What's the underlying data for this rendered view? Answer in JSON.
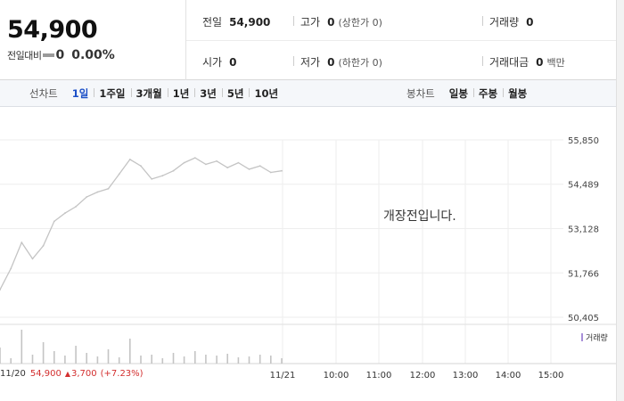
{
  "quote": {
    "price": "54,900",
    "change_label": "전일대비",
    "change_value": "0",
    "change_pct": "0.00%"
  },
  "stats": [
    {
      "label": "전일",
      "value": "54,900",
      "sub": ""
    },
    {
      "label": "고가",
      "value": "0",
      "sub": "(상한가 0)"
    },
    {
      "label": "거래량",
      "value": "0",
      "sub": ""
    },
    {
      "label": "시가",
      "value": "0",
      "sub": ""
    },
    {
      "label": "저가",
      "value": "0",
      "sub": "(하한가 0)"
    },
    {
      "label": "거래대금",
      "value": "0",
      "sub": "백만"
    }
  ],
  "line_tabs": {
    "label": "선차트",
    "items": [
      "1일",
      "1주일",
      "3개월",
      "1년",
      "3년",
      "5년",
      "10년"
    ],
    "active": 0
  },
  "candle_tabs": {
    "label": "봉차트",
    "items": [
      "일봉",
      "주봉",
      "월봉"
    ]
  },
  "notice": "개장전입니다.",
  "volume_legend": "거래량",
  "prev_day": {
    "date": "11/20",
    "price": "54,900",
    "arrow": "▲",
    "change": "3,700",
    "rate": "(+7.23%)"
  },
  "colors": {
    "line": "#c4c4c4",
    "up": "#d32f2f",
    "active_tab": "#1b4fc7",
    "volume": "#c4c4c4",
    "legend": "#a78fd8"
  },
  "chart_data": {
    "type": "line",
    "yticks": [
      55850,
      54489,
      53128,
      51766,
      50405
    ],
    "ytick_labels": [
      "55,850",
      "54,489",
      "53,128",
      "51,766",
      "50,405"
    ],
    "ylim": [
      50405,
      55850
    ],
    "xticks": [
      "11/21",
      "10:00",
      "11:00",
      "12:00",
      "13:00",
      "14:00",
      "15:00"
    ],
    "grid": true,
    "series": [
      {
        "x": [
          "11/20 09:00",
          "11/20 09:15",
          "11/20 09:30",
          "11/20 09:45",
          "11/20 10:00",
          "11/20 10:15",
          "11/20 10:30",
          "11/20 10:45",
          "11/20 11:00",
          "11/20 11:15",
          "11/20 11:30",
          "11/20 11:45",
          "11/20 12:00",
          "11/20 12:15",
          "11/20 12:30",
          "11/20 12:45",
          "11/20 13:00",
          "11/20 13:15",
          "11/20 13:30",
          "11/20 13:45",
          "11/20 14:00",
          "11/20 14:15",
          "11/20 14:30",
          "11/20 14:45",
          "11/20 15:00",
          "11/20 15:15",
          "11/20 15:30"
        ],
        "values": [
          51250,
          51900,
          52700,
          52200,
          52600,
          53350,
          53600,
          53800,
          54100,
          54250,
          54350,
          54800,
          55250,
          55050,
          54650,
          54750,
          54900,
          55150,
          55300,
          55100,
          55200,
          55000,
          55150,
          54950,
          55050,
          54850,
          54900
        ]
      }
    ],
    "volume": [
      18,
      6,
      38,
      10,
      24,
      14,
      9,
      20,
      12,
      8,
      16,
      7,
      28,
      9,
      10,
      6,
      12,
      8,
      14,
      10,
      9,
      11,
      7,
      8,
      10,
      9,
      6
    ]
  }
}
